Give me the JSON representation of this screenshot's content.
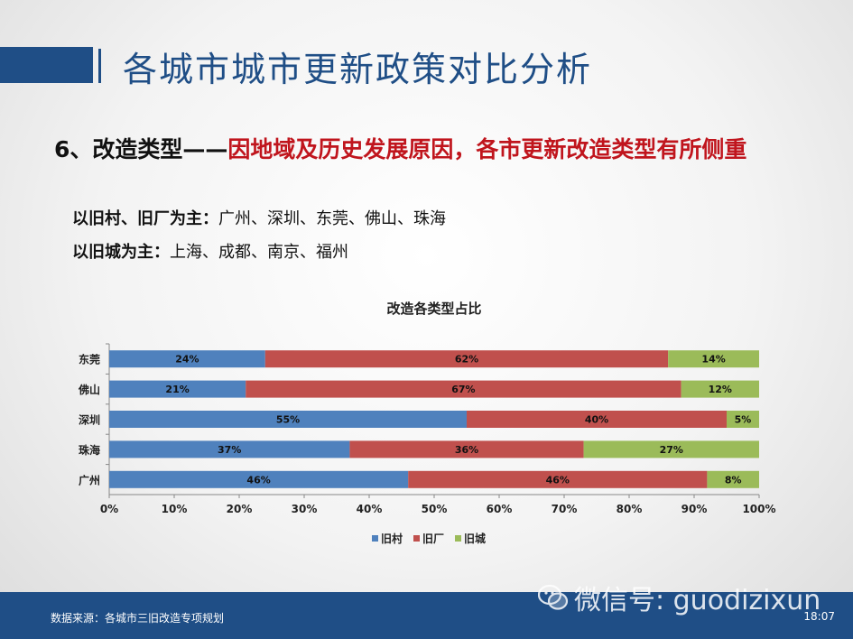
{
  "header": {
    "title": "各城市城市更新政策对比分析"
  },
  "subtitle": {
    "prefix": "6、改造类型——",
    "highlight": "因地域及历史发展原因，各市更新改造类型有所侧重"
  },
  "bullets": [
    {
      "label": "以旧村、旧厂为主",
      "sep": "：",
      "value": "广州、深圳、东莞、佛山、珠海"
    },
    {
      "label": "以旧城为主",
      "sep": "：",
      "value": "上海、成都、南京、福州"
    }
  ],
  "chart_data": {
    "type": "bar",
    "orientation": "horizontal",
    "stacked": true,
    "title": "改造各类型占比",
    "categories": [
      "东莞",
      "佛山",
      "深圳",
      "珠海",
      "广州"
    ],
    "series": [
      {
        "name": "旧村",
        "color": "#4f81bd",
        "values": [
          24,
          21,
          55,
          37,
          46
        ]
      },
      {
        "name": "旧厂",
        "color": "#c0504d",
        "values": [
          62,
          67,
          40,
          36,
          46
        ]
      },
      {
        "name": "旧城",
        "color": "#9bbb59",
        "values": [
          14,
          12,
          5,
          27,
          8
        ]
      }
    ],
    "xlim": [
      0,
      100
    ],
    "xticks": [
      "0%",
      "10%",
      "20%",
      "30%",
      "40%",
      "50%",
      "60%",
      "70%",
      "80%",
      "90%",
      "100%"
    ],
    "value_suffix": "%",
    "grid": false,
    "legend": "bottom"
  },
  "footer": {
    "source": "数据来源：各城市三旧改造专项规划",
    "time": "18:07"
  },
  "watermark": {
    "text": "微信号: guodizixun",
    "icon": "wechat-icon"
  }
}
